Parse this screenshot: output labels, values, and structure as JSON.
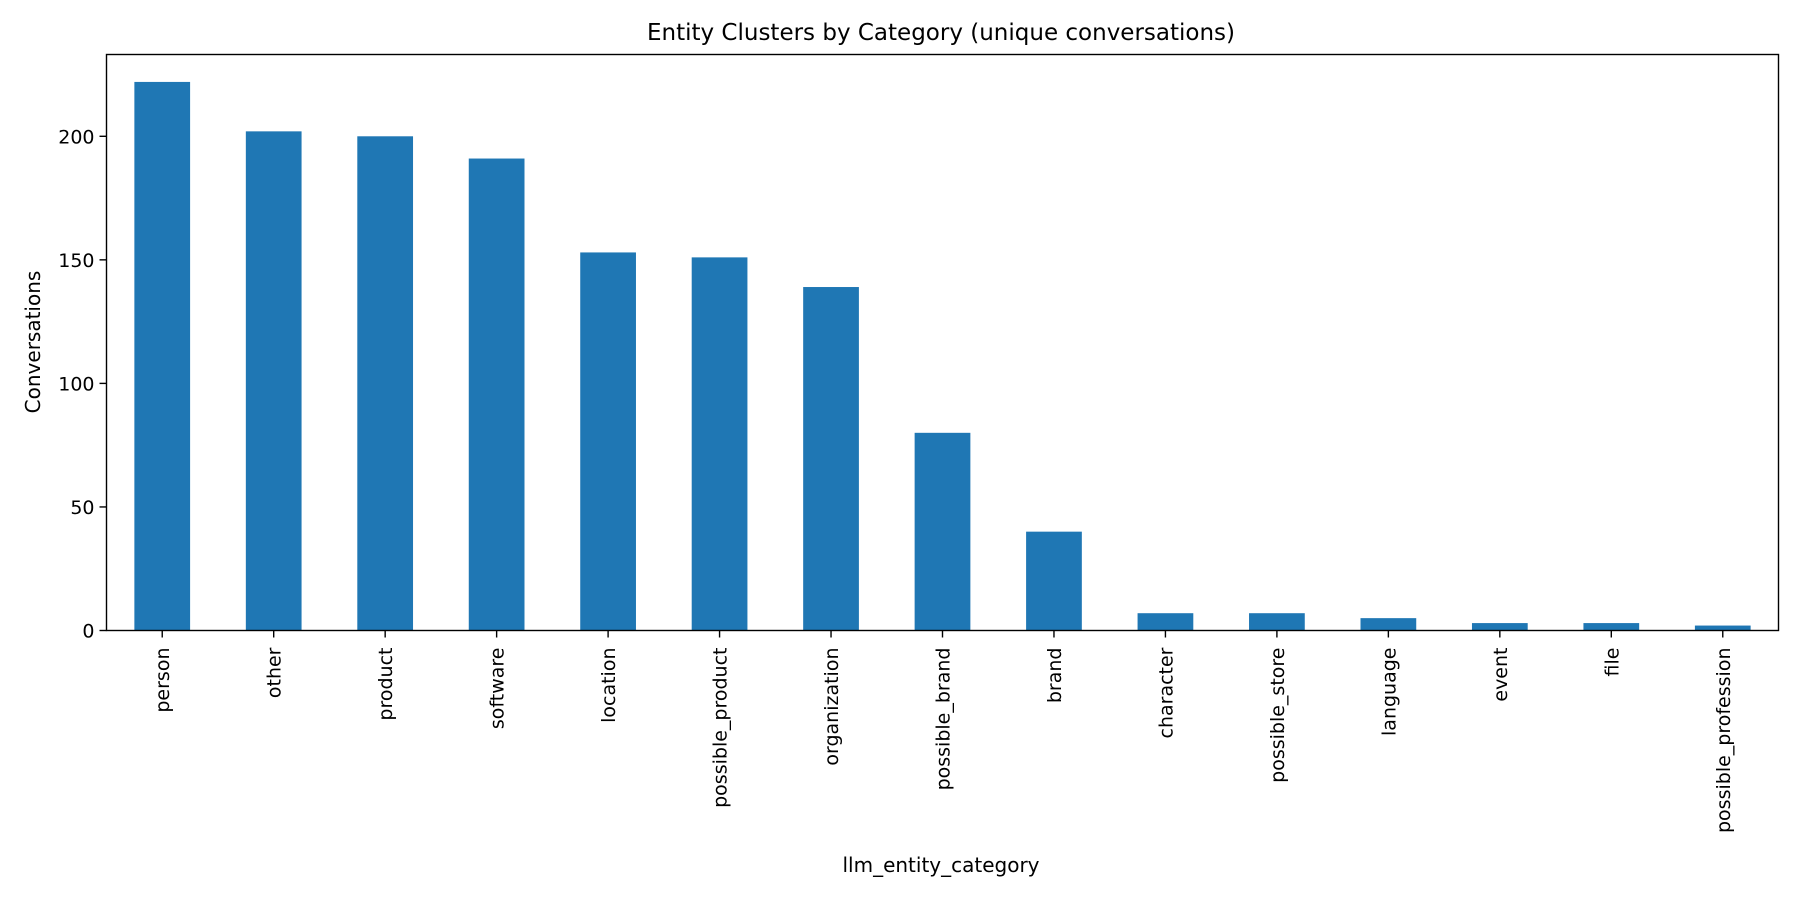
{
  "chart_data": {
    "type": "bar",
    "title": "Entity Clusters by Category (unique conversations)",
    "xlabel": "llm_entity_category",
    "ylabel": "Conversations",
    "categories": [
      "person",
      "other",
      "product",
      "software",
      "location",
      "possible_product",
      "organization",
      "possible_brand",
      "brand",
      "character",
      "possible_store",
      "language",
      "event",
      "file",
      "possible_profession"
    ],
    "values": [
      222,
      202,
      200,
      191,
      153,
      151,
      139,
      80,
      40,
      7,
      7,
      5,
      3,
      3,
      2
    ],
    "ylim": [
      0,
      233.1
    ],
    "yticks": [
      0,
      50,
      100,
      150,
      200
    ],
    "grid": false,
    "legend": "none",
    "bar_color": "#1f77b4"
  }
}
